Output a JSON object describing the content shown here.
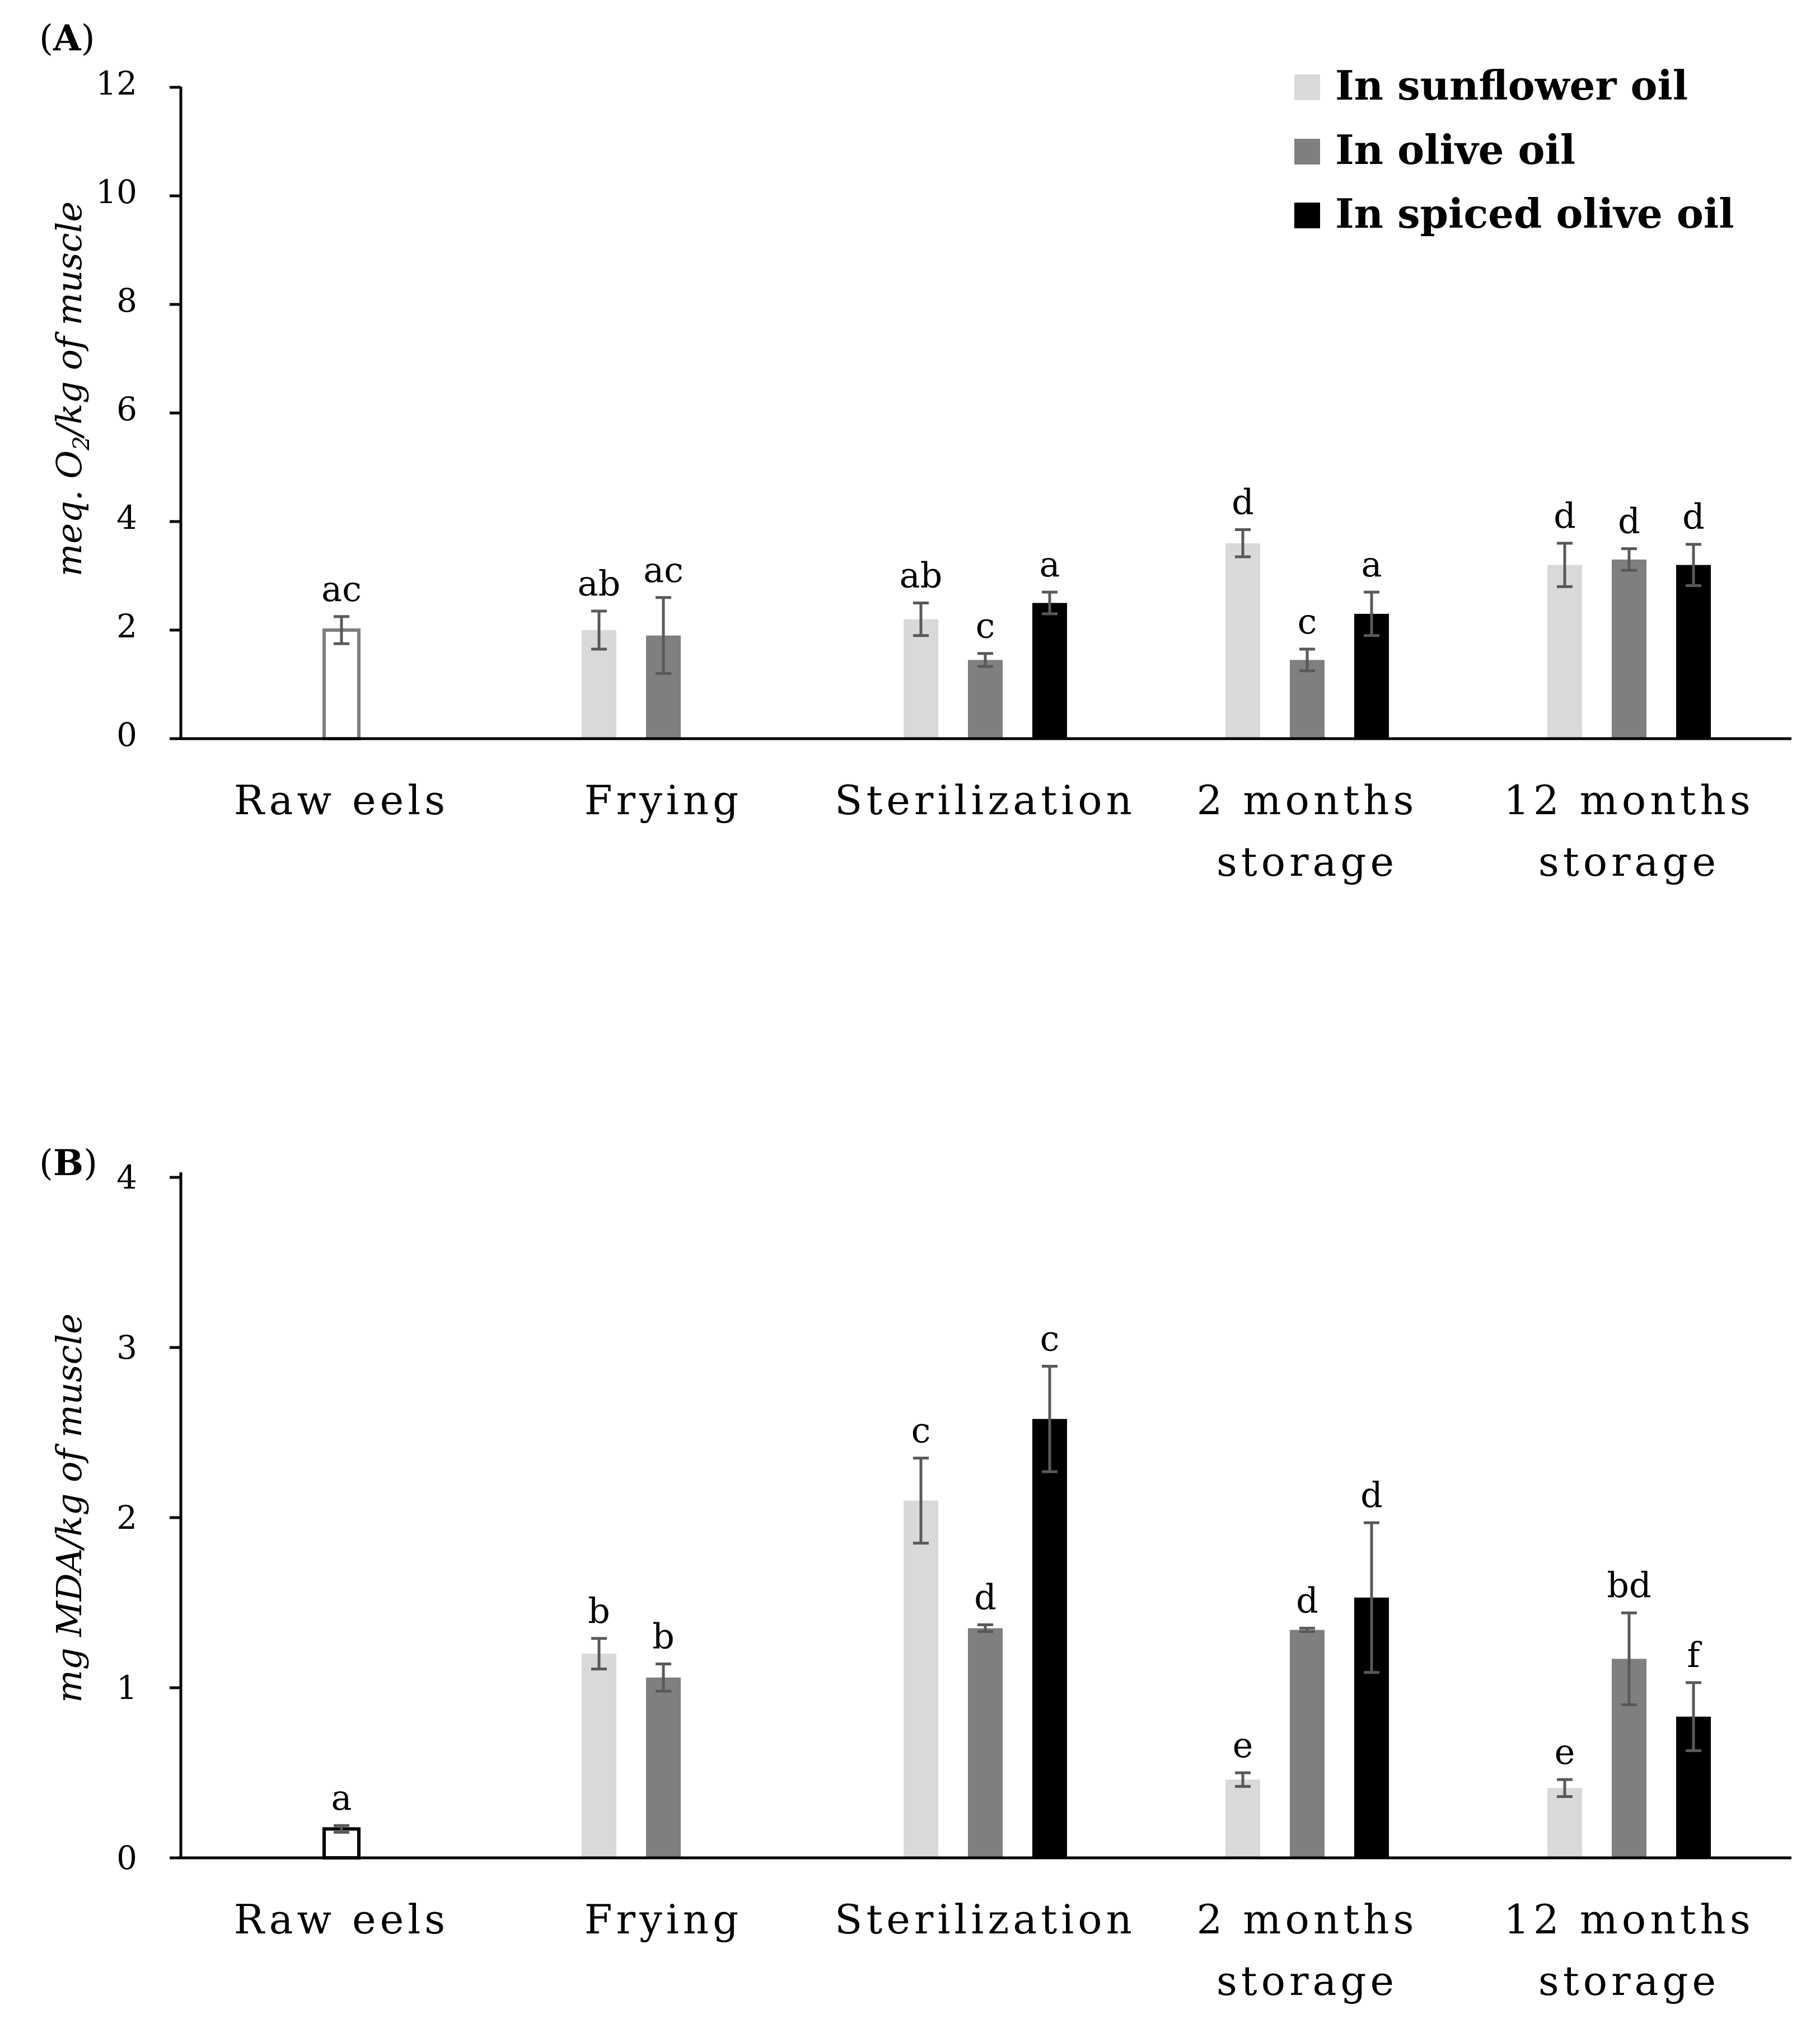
{
  "legend": [
    {
      "name": "In sunflower oil",
      "color": "#d9d9d9"
    },
    {
      "name": "In olive oil",
      "color": "#7f7f7f"
    },
    {
      "name": "In spiced olive oil",
      "color": "#000000"
    }
  ],
  "raw_bar": {
    "fill": "#ffffff",
    "stroke_a": "#7f7f7f",
    "stroke_b": "#000000"
  },
  "errorbar_color": "#595959",
  "chart_data": [
    {
      "type": "bar",
      "panel_label": {
        "open": "(",
        "letter": "A",
        "close": ")"
      },
      "ylabel": {
        "prefix": "meq. O",
        "sub": "2",
        "suffix": "/kg of muscle"
      },
      "ylim": [
        0,
        12
      ],
      "yticks": [
        "0",
        "2",
        "4",
        "6",
        "8",
        "10",
        "12"
      ],
      "categories": [
        [
          "Raw eels"
        ],
        [
          "Frying"
        ],
        [
          "Sterilization"
        ],
        [
          "2 months",
          "storage"
        ],
        [
          "12 months",
          "storage"
        ]
      ],
      "raw": {
        "value": 2.0,
        "error": 0.25,
        "label": "ac"
      },
      "series": [
        {
          "name": "In sunflower oil",
          "values": [
            null,
            2.0,
            2.2,
            3.6,
            3.2
          ],
          "errors": [
            null,
            0.35,
            0.3,
            0.25,
            0.4
          ],
          "labels": [
            "",
            "ab",
            "ab",
            "d",
            "d"
          ]
        },
        {
          "name": "In olive oil",
          "values": [
            null,
            1.9,
            1.45,
            1.45,
            3.3
          ],
          "errors": [
            null,
            0.7,
            0.12,
            0.2,
            0.2
          ],
          "labels": [
            "",
            "ac",
            "c",
            "c",
            "d"
          ]
        },
        {
          "name": "In spiced olive oil",
          "values": [
            null,
            null,
            2.5,
            2.3,
            3.2
          ],
          "errors": [
            null,
            null,
            0.2,
            0.4,
            0.38
          ],
          "labels": [
            "",
            "",
            "a",
            "a",
            "d"
          ]
        }
      ]
    },
    {
      "type": "bar",
      "panel_label": {
        "open": "(",
        "letter": "B",
        "close": ")"
      },
      "ylabel": {
        "prefix": "mg MDA/kg of muscle",
        "sub": "",
        "suffix": ""
      },
      "ylim": [
        0,
        4
      ],
      "yticks": [
        "0",
        "1",
        "2",
        "3",
        "4"
      ],
      "categories": [
        [
          "Raw eels"
        ],
        [
          "Frying"
        ],
        [
          "Sterilization"
        ],
        [
          "2 months",
          "storage"
        ],
        [
          "12 months",
          "storage"
        ]
      ],
      "raw": {
        "value": 0.17,
        "error": 0.02,
        "label": "a"
      },
      "series": [
        {
          "name": "In sunflower oil",
          "values": [
            null,
            1.2,
            2.1,
            0.46,
            0.41
          ],
          "errors": [
            null,
            0.09,
            0.25,
            0.04,
            0.05
          ],
          "labels": [
            "",
            "b",
            "c",
            "e",
            "e"
          ]
        },
        {
          "name": "In olive oil",
          "values": [
            null,
            1.06,
            1.35,
            1.34,
            1.17
          ],
          "errors": [
            null,
            0.08,
            0.02,
            0.01,
            0.27
          ],
          "labels": [
            "",
            "b",
            "d",
            "d",
            "bd"
          ]
        },
        {
          "name": "In spiced olive oil",
          "values": [
            null,
            null,
            2.58,
            1.53,
            0.83
          ],
          "errors": [
            null,
            null,
            0.31,
            0.44,
            0.2
          ],
          "labels": [
            "",
            "",
            "c",
            "d",
            "f"
          ]
        }
      ]
    }
  ]
}
